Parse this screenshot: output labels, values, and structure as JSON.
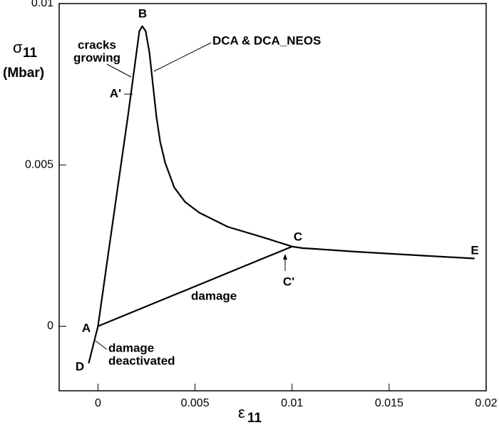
{
  "chart_data": {
    "type": "line",
    "x": [
      -0.00048,
      0,
      0.00044,
      0.00099,
      0.00154,
      0.00191,
      0.00213,
      0.00228,
      0.00246,
      0.00265,
      0.00283,
      0.00301,
      0.0032,
      0.00346,
      0.00393,
      0.00449,
      0.00522,
      0.00669,
      0.00853,
      0.01,
      null,
      0,
      0.01,
      0.01055,
      0.0111,
      0.0133,
      0.017,
      0.0194
    ],
    "values": [
      -0.00115,
      0,
      0.00187,
      0.00419,
      0.0065,
      0.00815,
      0.00914,
      0.0093,
      0.00914,
      0.00848,
      0.00749,
      0.0065,
      0.00573,
      0.00507,
      0.0043,
      0.00385,
      0.00352,
      0.00308,
      0.00275,
      0.00247,
      null,
      0,
      0.00247,
      0.00242,
      0.0024,
      0.00231,
      0.00218,
      0.0021
    ],
    "color": "#000000",
    "xlim": [
      -0.002,
      0.02
    ],
    "xticks": [
      0,
      0.005,
      0.01,
      0.015,
      0.02
    ],
    "ylim": [
      -0.002,
      0.01
    ],
    "yticks": [
      0,
      0.005,
      0.01
    ],
    "xlabel": {
      "symbol": "ε",
      "sub": "11"
    },
    "ylabel": {
      "symbol": "σ",
      "sub": "11",
      "unit": "(Mbar)"
    },
    "annotations": {
      "B": "B",
      "A_prime": "A'",
      "A": "A",
      "C": "C",
      "C_prime": "C'",
      "D": "D",
      "E": "E",
      "cracks": [
        "cracks",
        "growing"
      ],
      "dca": "DCA & DCA_NEOS",
      "damage": "damage",
      "deactivated": [
        "damage",
        "deactivated"
      ]
    }
  }
}
